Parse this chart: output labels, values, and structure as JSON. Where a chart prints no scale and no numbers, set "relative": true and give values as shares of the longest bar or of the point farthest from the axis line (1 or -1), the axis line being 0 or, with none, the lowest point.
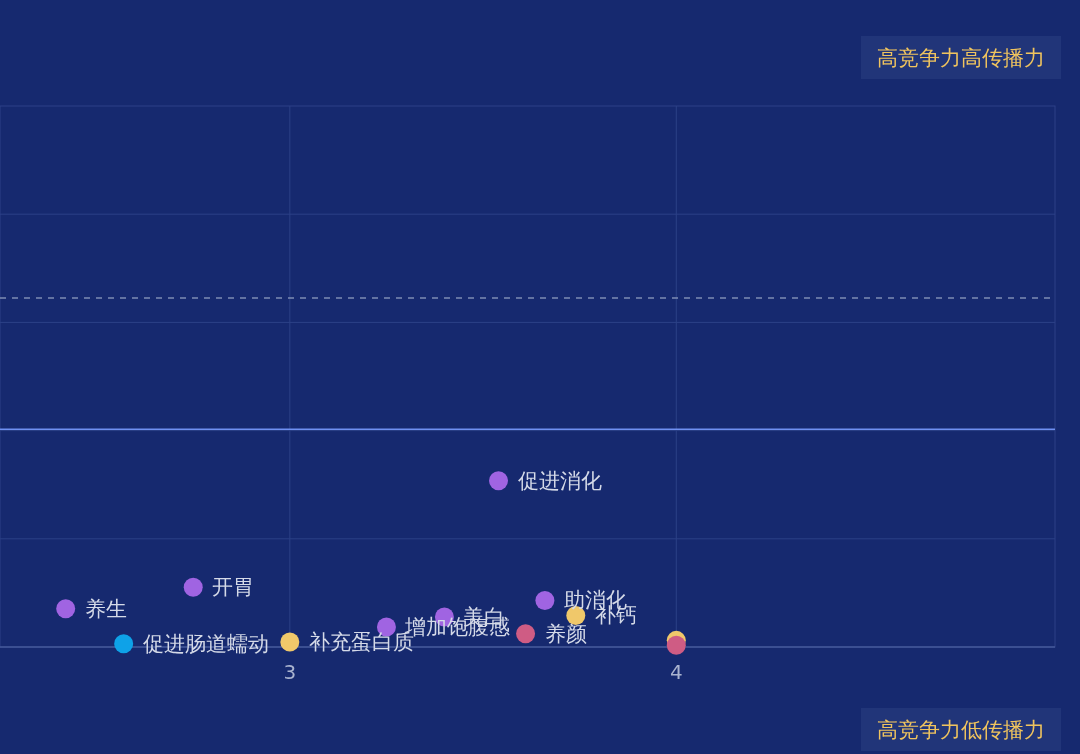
{
  "chart_data": {
    "type": "scatter",
    "relative": true,
    "xlim": [
      2.25,
      4.98
    ],
    "xticks": [
      3,
      4
    ],
    "grid": true,
    "marker": "circle",
    "tick_labels": "x",
    "series": [
      {
        "color": "#a064e2",
        "x": [
          2.42,
          2.75,
          3.25,
          3.4,
          3.54,
          3.66
        ],
        "values": [
          0.23,
          0.36,
          0.12,
          0.18,
          1,
          0.28
        ]
      },
      {
        "color": "#0ea2e8",
        "x": [
          2.57
        ],
        "values": [
          0.02
        ]
      },
      {
        "color": "#f0c86a",
        "x": [
          3.0,
          3.74,
          4.0
        ],
        "values": [
          0.03,
          0.19,
          0.04
        ]
      },
      {
        "color": "#cf5c84",
        "x": [
          3.61,
          4.0
        ],
        "values": [
          0.08,
          0.01
        ]
      }
    ],
    "ref_lines": [
      {
        "axis": "y",
        "value": 1.31,
        "color": "#6f90f2",
        "line_style": "solid"
      },
      {
        "axis": "y",
        "value": 2.1,
        "color": "#7d8cb4",
        "line_style": "dashed"
      }
    ],
    "annotations": [
      {
        "text": "养生",
        "x": 2.42,
        "y": 0.23
      },
      {
        "text": "促进肠道蠕动",
        "x": 2.57,
        "y": 0.02
      },
      {
        "text": "开胃",
        "x": 2.75,
        "y": 0.36
      },
      {
        "text": "补充蛋白质",
        "x": 3.0,
        "y": 0.03
      },
      {
        "text": "增加饱腹感",
        "x": 3.25,
        "y": 0.12
      },
      {
        "text": "美白",
        "x": 3.4,
        "y": 0.18
      },
      {
        "text": "促进消化",
        "x": 3.54,
        "y": 1
      },
      {
        "text": "养颜",
        "x": 3.61,
        "y": 0.08
      },
      {
        "text": "助消化",
        "x": 3.66,
        "y": 0.28
      },
      {
        "text": "补钙",
        "x": 3.74,
        "y": 0.19
      },
      "高竞争力高传播力",
      "高竞争力低传播力"
    ]
  }
}
